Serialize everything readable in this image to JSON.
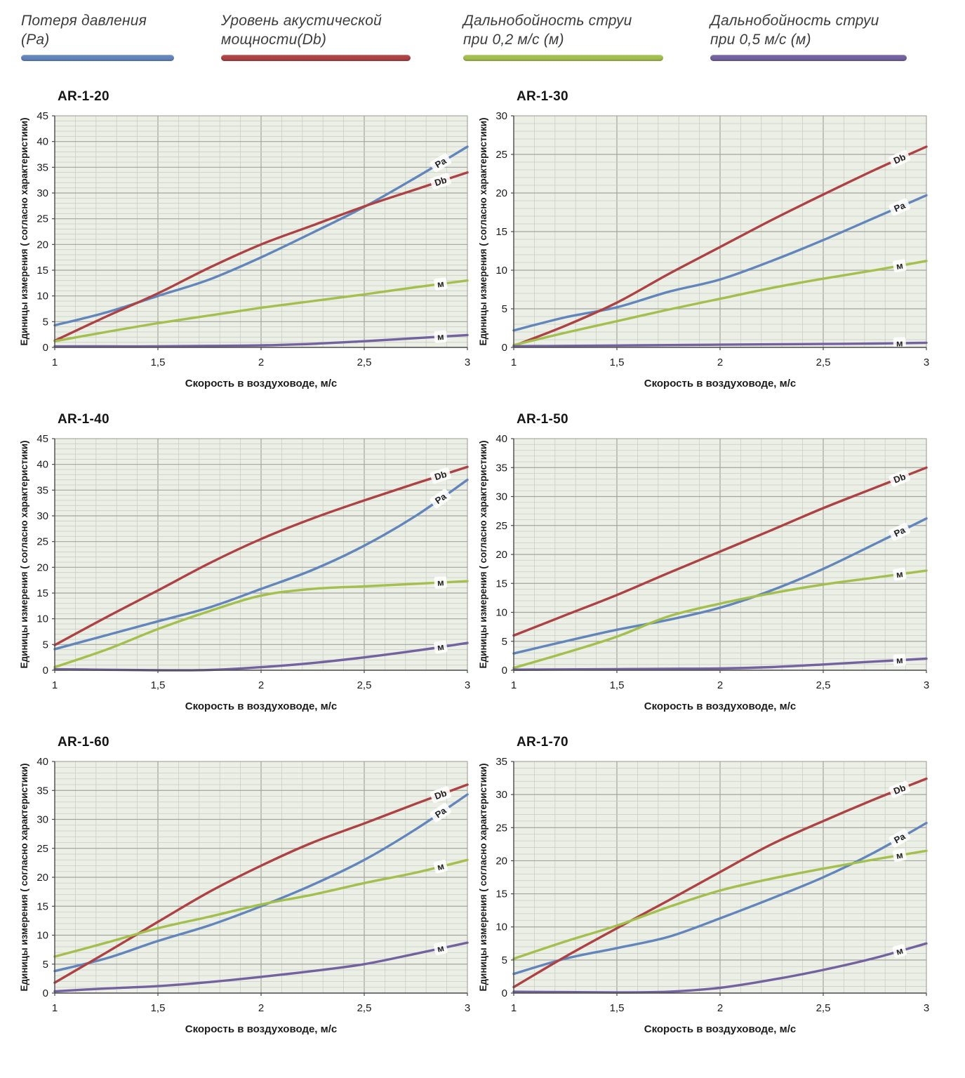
{
  "legend": {
    "items": [
      {
        "label_line1": "Потеря давления",
        "label_line2": "(Pa)",
        "color": "#6285bb"
      },
      {
        "label_line1": "Уровень акустической",
        "label_line2": "мощности(Db)",
        "color": "#ad4143"
      },
      {
        "label_line1": "Дальнобойность струи",
        "label_line2": "при 0,2 м/с (м)",
        "color": "#a3bf4e"
      },
      {
        "label_line1": "Дальнобойность струи",
        "label_line2": "при 0,5 м/с (м)",
        "color": "#73629f"
      }
    ]
  },
  "axis": {
    "x_ticks": [
      "1",
      "1,5",
      "2",
      "2,5",
      "3"
    ],
    "x_tick_values": [
      1,
      1.5,
      2,
      2.5,
      3
    ]
  },
  "colors": {
    "pa_blue": "#6285bb",
    "db_red": "#ad4143",
    "m02_green": "#a3bf4e",
    "m05_purple": "#73629f",
    "plot_bg": "#ecefe6",
    "grid_minor": "#c9cfc3",
    "grid_major": "#a3a59e"
  },
  "chart_data": [
    {
      "type": "line",
      "title": "AR-1-20",
      "xlabel": "Скорость в воздуховоде, м/с",
      "ylabel": "Единицы измерения ( согласно характеристики)",
      "x": [
        1,
        1.25,
        1.5,
        1.75,
        2,
        2.25,
        2.5,
        2.75,
        3
      ],
      "xlim": [
        1,
        3
      ],
      "ylim": [
        0,
        45
      ],
      "y_tick_step": 5,
      "series": [
        {
          "name": "Потеря давления (Pa)",
          "label": "Pa",
          "color": "#6285bb",
          "values": [
            4.3,
            6.8,
            10,
            13.2,
            17.5,
            22.3,
            27.3,
            33,
            39
          ]
        },
        {
          "name": "Уровень акустической мощности(Db)",
          "label": "Db",
          "color": "#ad4143",
          "values": [
            1.3,
            6,
            10.5,
            15.5,
            20,
            23.7,
            27.4,
            30.7,
            34
          ]
        },
        {
          "name": "Дальнобойность струи при 0,2 м/с (м)",
          "label": "м",
          "color": "#a3bf4e",
          "values": [
            1.2,
            3,
            4.7,
            6.2,
            7.7,
            9,
            10.3,
            11.7,
            13
          ]
        },
        {
          "name": "Дальнобойность струи при 0,5 м/с (м)",
          "label": "м",
          "color": "#73629f",
          "values": [
            0.2,
            0.2,
            0.2,
            0.3,
            0.4,
            0.7,
            1.2,
            1.8,
            2.4
          ]
        }
      ]
    },
    {
      "type": "line",
      "title": "AR-1-30",
      "xlabel": "Скорость в воздуховоде, м/с",
      "ylabel": "Единицы измерения ( согласно характеристики)",
      "x": [
        1,
        1.25,
        1.5,
        1.75,
        2,
        2.25,
        2.5,
        2.75,
        3
      ],
      "xlim": [
        1,
        3
      ],
      "ylim": [
        0,
        30
      ],
      "y_tick_step": 5,
      "series": [
        {
          "name": "Потеря давления (Pa)",
          "label": "Pa",
          "color": "#6285bb",
          "values": [
            2.2,
            3.9,
            5.2,
            7.2,
            8.8,
            11.2,
            13.9,
            16.8,
            19.7
          ]
        },
        {
          "name": "Уровень акустической мощности(Db)",
          "label": "Db",
          "color": "#ad4143",
          "values": [
            0.2,
            2.8,
            5.8,
            9.5,
            13,
            16.5,
            19.8,
            23,
            26
          ]
        },
        {
          "name": "Дальнобойность струи при 0,2 м/с (м)",
          "label": "м",
          "color": "#a3bf4e",
          "values": [
            0.3,
            1.9,
            3.4,
            4.9,
            6.3,
            7.7,
            8.9,
            10,
            11.2
          ]
        },
        {
          "name": "Дальнобойность струи при 0,5 м/с (м)",
          "label": "м",
          "color": "#73629f",
          "values": [
            0.15,
            0.2,
            0.25,
            0.3,
            0.35,
            0.4,
            0.45,
            0.5,
            0.6
          ]
        }
      ]
    },
    {
      "type": "line",
      "title": "AR-1-40",
      "xlabel": "Скорость в воздуховоде, м/с",
      "ylabel": "Единицы измерения ( согласно характеристики)",
      "x": [
        1,
        1.25,
        1.5,
        1.75,
        2,
        2.25,
        2.5,
        2.75,
        3
      ],
      "xlim": [
        1,
        3
      ],
      "ylim": [
        0,
        45
      ],
      "y_tick_step": 5,
      "series": [
        {
          "name": "Потеря давления (Pa)",
          "label": "Pa",
          "color": "#6285bb",
          "values": [
            4.1,
            6.8,
            9.5,
            12.2,
            15.8,
            19.5,
            24.2,
            30,
            37
          ]
        },
        {
          "name": "Уровень акустической мощности(Db)",
          "label": "Db",
          "color": "#ad4143",
          "values": [
            4.9,
            10.3,
            15.5,
            20.8,
            25.5,
            29.5,
            33,
            36.3,
            39.5
          ]
        },
        {
          "name": "Дальнобойность струи при 0,2 м/с (м)",
          "label": "м",
          "color": "#a3bf4e",
          "values": [
            0.6,
            4,
            8,
            11.5,
            14.5,
            15.8,
            16.3,
            16.8,
            17.3
          ]
        },
        {
          "name": "Дальнобойность струи при 0,5 м/с (м)",
          "label": "м",
          "color": "#73629f",
          "values": [
            0.2,
            0.1,
            0,
            0.05,
            0.6,
            1.4,
            2.5,
            3.8,
            5.3
          ]
        }
      ]
    },
    {
      "type": "line",
      "title": "AR-1-50",
      "xlabel": "Скорость в воздуховоде, м/с",
      "ylabel": "Единицы измерения ( согласно характеристики)",
      "x": [
        1,
        1.25,
        1.5,
        1.75,
        2,
        2.25,
        2.5,
        2.75,
        3
      ],
      "xlim": [
        1,
        3
      ],
      "ylim": [
        0,
        40
      ],
      "y_tick_step": 5,
      "series": [
        {
          "name": "Потеря давления (Pa)",
          "label": "Pa",
          "color": "#6285bb",
          "values": [
            2.9,
            5,
            7,
            8.7,
            10.8,
            13.8,
            17.5,
            21.8,
            26.2
          ]
        },
        {
          "name": "Уровень акустической мощности(Db)",
          "label": "Db",
          "color": "#ad4143",
          "values": [
            6,
            9.5,
            13,
            16.8,
            20.5,
            24.2,
            28,
            31.5,
            35
          ]
        },
        {
          "name": "Дальнобойность струи при 0,2 м/с (м)",
          "label": "м",
          "color": "#a3bf4e",
          "values": [
            0.4,
            3,
            5.8,
            9.3,
            11.5,
            13.3,
            14.8,
            16,
            17.2
          ]
        },
        {
          "name": "Дальнобойность струи при 0,5 м/с (м)",
          "label": "м",
          "color": "#73629f",
          "values": [
            0.1,
            0.15,
            0.2,
            0.25,
            0.3,
            0.55,
            1.0,
            1.5,
            2.0
          ]
        }
      ]
    },
    {
      "type": "line",
      "title": "AR-1-60",
      "xlabel": "Скорость в воздуховоде, м/с",
      "ylabel": "Единицы измерения ( согласно характеристики)",
      "x": [
        1,
        1.25,
        1.5,
        1.75,
        2,
        2.25,
        2.5,
        2.75,
        3
      ],
      "xlim": [
        1,
        3
      ],
      "ylim": [
        0,
        40
      ],
      "y_tick_step": 5,
      "series": [
        {
          "name": "Потеря давления (Pa)",
          "label": "Pa",
          "color": "#6285bb",
          "values": [
            3.8,
            6,
            9,
            11.7,
            15,
            18.7,
            23,
            28.3,
            34.3
          ]
        },
        {
          "name": "Уровень акустической мощности(Db)",
          "label": "Db",
          "color": "#ad4143",
          "values": [
            1.8,
            7,
            12.3,
            17.5,
            22,
            26,
            29.3,
            32.7,
            36
          ]
        },
        {
          "name": "Дальнобойность струи при 0,2 м/с (м)",
          "label": "м",
          "color": "#a3bf4e",
          "values": [
            6.3,
            8.7,
            11.2,
            13.2,
            15.3,
            17,
            19,
            20.8,
            23
          ]
        },
        {
          "name": "Дальнобойность струи при 0,5 м/с (м)",
          "label": "м",
          "color": "#73629f",
          "values": [
            0.3,
            0.8,
            1.2,
            1.9,
            2.8,
            3.8,
            5,
            6.8,
            8.7
          ]
        }
      ]
    },
    {
      "type": "line",
      "title": "AR-1-70",
      "xlabel": "Скорость в воздуховоде, м/с",
      "ylabel": "Единицы измерения ( согласно характеристики)",
      "x": [
        1,
        1.25,
        1.5,
        1.75,
        2,
        2.25,
        2.5,
        2.75,
        3
      ],
      "xlim": [
        1,
        3
      ],
      "ylim": [
        0,
        35
      ],
      "y_tick_step": 5,
      "series": [
        {
          "name": "Потеря давления (Pa)",
          "label": "Pa",
          "color": "#6285bb",
          "values": [
            2.9,
            5.2,
            6.8,
            8.5,
            11.3,
            14.3,
            17.5,
            21.3,
            25.7
          ]
        },
        {
          "name": "Уровень акустической мощности(Db)",
          "label": "Db",
          "color": "#ad4143",
          "values": [
            0.9,
            5.5,
            9.8,
            14,
            18.3,
            22.5,
            26,
            29.3,
            32.4
          ]
        },
        {
          "name": "Дальнобойность струи при 0,2 м/с (м)",
          "label": "м",
          "color": "#a3bf4e",
          "values": [
            5.2,
            7.8,
            10.2,
            13,
            15.5,
            17.3,
            18.8,
            20.2,
            21.5
          ]
        },
        {
          "name": "Дальнобойность струи при 0,5 м/с (м)",
          "label": "м",
          "color": "#73629f",
          "values": [
            0.2,
            0.15,
            0.1,
            0.2,
            0.8,
            2,
            3.5,
            5.3,
            7.5
          ]
        }
      ]
    }
  ]
}
